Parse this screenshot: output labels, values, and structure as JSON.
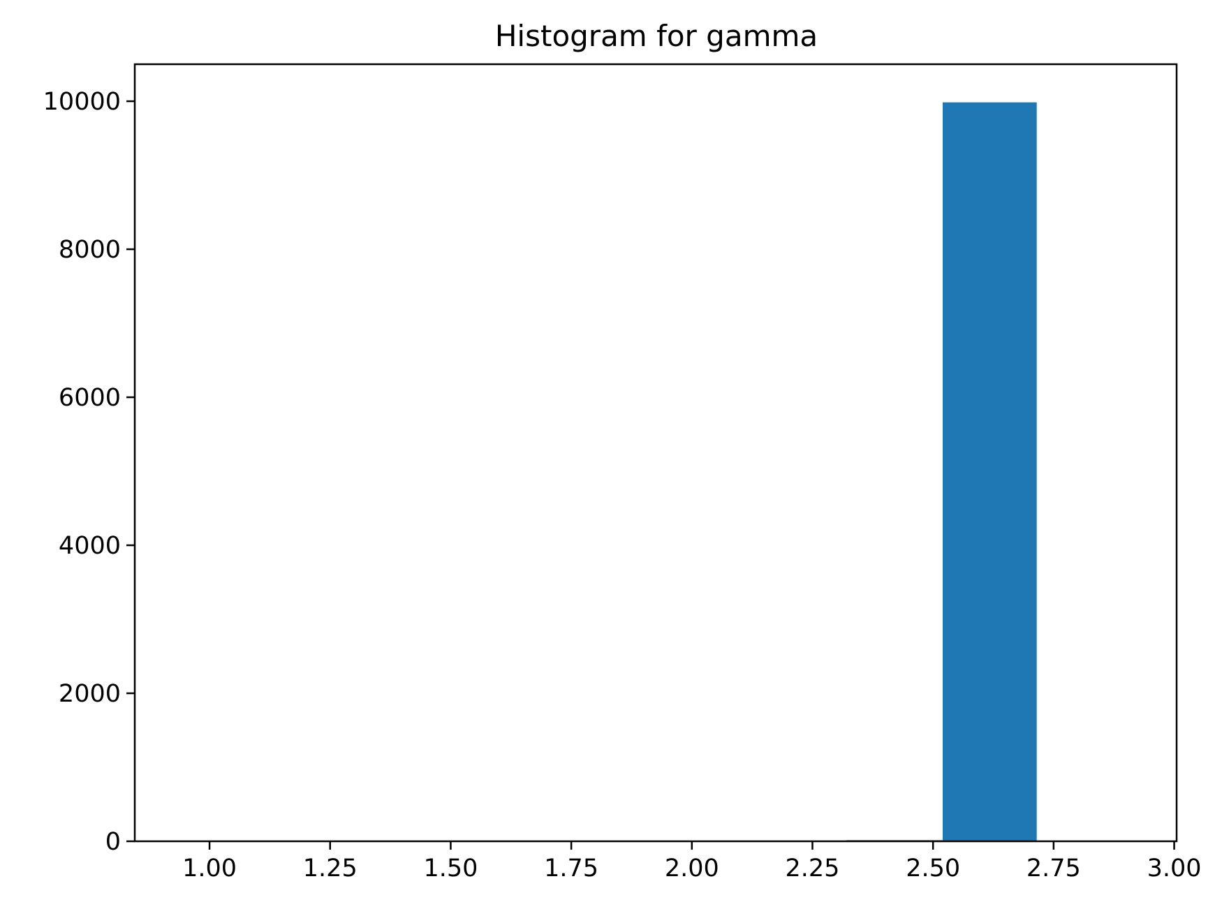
{
  "chart_data": {
    "type": "bar",
    "title": "Histogram for gamma",
    "xlabel": "",
    "ylabel": "",
    "xlim": [
      0.845,
      3.005
    ],
    "ylim": [
      0,
      10500
    ],
    "xticks": [
      1.0,
      1.25,
      1.5,
      1.75,
      2.0,
      2.25,
      2.5,
      2.75,
      3.0
    ],
    "xtick_labels": [
      "1.00",
      "1.25",
      "1.50",
      "1.75",
      "2.00",
      "2.25",
      "2.50",
      "2.75",
      "3.00"
    ],
    "yticks": [
      0,
      2000,
      4000,
      6000,
      8000,
      10000
    ],
    "ytick_labels": [
      "0",
      "2000",
      "4000",
      "6000",
      "8000",
      "10000"
    ],
    "bins": [
      {
        "start": 2.32,
        "end": 2.52,
        "value": 15
      },
      {
        "start": 2.52,
        "end": 2.715,
        "value": 9985
      }
    ],
    "bar_color": "#1f77b4",
    "grid": false
  }
}
